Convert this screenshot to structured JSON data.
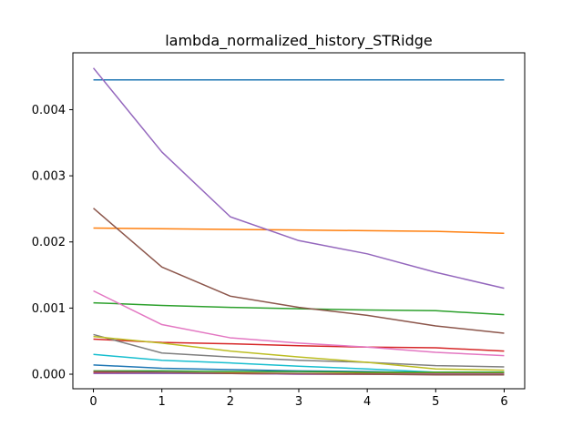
{
  "chart_data": {
    "type": "line",
    "title": "lambda_normalized_history_STRidge",
    "xlabel": "",
    "ylabel": "",
    "x": [
      0,
      1,
      2,
      3,
      4,
      5,
      6
    ],
    "xlim": [
      -0.3,
      6.3
    ],
    "ylim": [
      -0.00022,
      0.00486
    ],
    "x_ticks": [
      0,
      1,
      2,
      3,
      4,
      5,
      6
    ],
    "x_tick_labels": [
      "0",
      "1",
      "2",
      "3",
      "4",
      "5",
      "6"
    ],
    "y_ticks": [
      0,
      0.001,
      0.002,
      0.003,
      0.004
    ],
    "y_tick_labels": [
      "0.000",
      "0.001",
      "0.002",
      "0.003",
      "0.004"
    ],
    "grid": false,
    "legend": "none",
    "series": [
      {
        "color": "#1f77b4",
        "values": [
          0.00445,
          0.00445,
          0.00445,
          0.00445,
          0.00445,
          0.00445,
          0.00445
        ]
      },
      {
        "color": "#ff7f0e",
        "values": [
          0.00221,
          0.0022,
          0.00219,
          0.00218,
          0.00217,
          0.00216,
          0.00213
        ]
      },
      {
        "color": "#2ca02c",
        "values": [
          0.00108,
          0.00104,
          0.00101,
          0.00099,
          0.00097,
          0.00096,
          0.0009
        ]
      },
      {
        "color": "#d62728",
        "values": [
          0.00053,
          0.00048,
          0.00046,
          0.00043,
          0.00041,
          0.0004,
          0.00035
        ]
      },
      {
        "color": "#9467bd",
        "values": [
          0.00463,
          0.00336,
          0.00238,
          0.00202,
          0.00182,
          0.00154,
          0.0013
        ]
      },
      {
        "color": "#8c564b",
        "values": [
          0.00251,
          0.00162,
          0.00118,
          0.00101,
          0.00089,
          0.00073,
          0.00062
        ]
      },
      {
        "color": "#e377c2",
        "values": [
          0.00126,
          0.00075,
          0.00055,
          0.00047,
          0.00041,
          0.00033,
          0.00028
        ]
      },
      {
        "color": "#7f7f7f",
        "values": [
          0.0006,
          0.00032,
          0.00026,
          0.00021,
          0.00018,
          0.00013,
          0.00011
        ]
      },
      {
        "color": "#bcbd22",
        "values": [
          0.00057,
          0.00047,
          0.00035,
          0.00026,
          0.00018,
          8e-05,
          6e-05
        ]
      },
      {
        "color": "#17becf",
        "values": [
          0.0003,
          0.00021,
          0.00017,
          0.00012,
          8e-05,
          3e-05,
          3e-05
        ]
      },
      {
        "color": "#1f77b4",
        "values": [
          0.00014,
          9e-05,
          7e-05,
          5e-05,
          4e-05,
          2e-05,
          2e-05
        ]
      },
      {
        "color": "#ff7f0e",
        "values": [
          3e-05,
          2e-05,
          2e-05,
          1e-05,
          1e-05,
          1e-05,
          1e-05
        ]
      },
      {
        "color": "#2ca02c",
        "values": [
          5e-05,
          5e-05,
          4e-05,
          4e-05,
          3e-05,
          3e-05,
          3e-05
        ]
      },
      {
        "color": "#d62728",
        "values": [
          2e-05,
          1e-05,
          1e-05,
          0.0,
          0.0,
          0.0,
          0.0
        ]
      },
      {
        "color": "#9467bd",
        "values": [
          1e-05,
          1e-05,
          1e-05,
          0.0,
          0.0,
          0.0,
          0.0
        ]
      },
      {
        "color": "#8c564b",
        "values": [
          4e-05,
          3e-05,
          1e-05,
          1e-05,
          0.0,
          -1e-05,
          -1e-05
        ]
      }
    ]
  }
}
